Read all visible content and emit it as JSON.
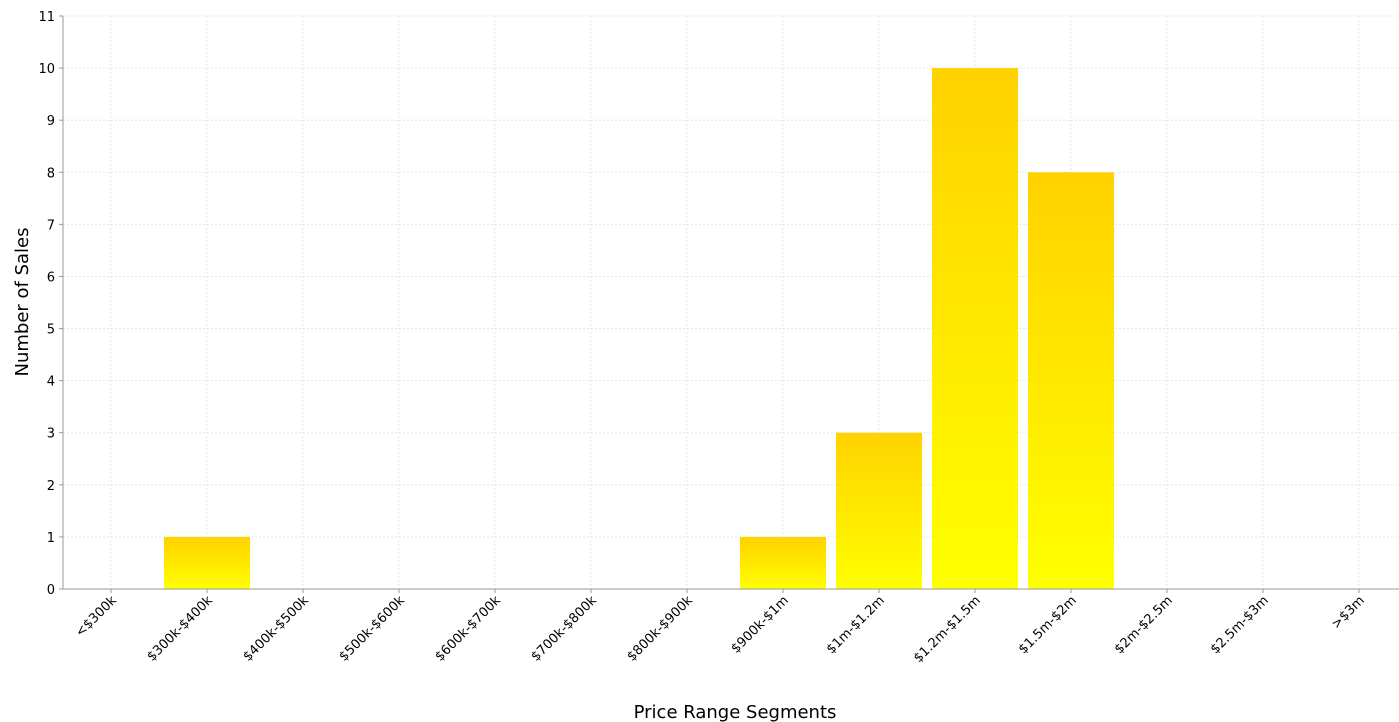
{
  "chart_data": {
    "type": "bar",
    "title": "",
    "xlabel": "Price Range Segments",
    "ylabel": "Number of Sales",
    "categories": [
      "<$300k",
      "$300k-$400k",
      "$400k-$500k",
      "$500k-$600k",
      "$600k-$700k",
      "$700k-$800k",
      "$800k-$900k",
      "$900k-$1m",
      "$1m-$1.2m",
      "$1.2m-$1.5m",
      "$1.5m-$2m",
      "$2m-$2.5m",
      "$2.5m-$3m",
      ">$3m"
    ],
    "values": [
      0,
      1,
      0,
      0,
      0,
      0,
      0,
      1,
      3,
      10,
      8,
      0,
      0,
      0
    ],
    "ylim": [
      0,
      11
    ],
    "yticks": [
      0,
      1,
      2,
      3,
      4,
      5,
      6,
      7,
      8,
      9,
      10,
      11
    ],
    "grid": true,
    "legend": "none",
    "colors": {
      "bar_top": "#ffd200",
      "bar_bottom": "#ffff00",
      "grid": "#e0e0e0",
      "axis": "#999999"
    }
  }
}
